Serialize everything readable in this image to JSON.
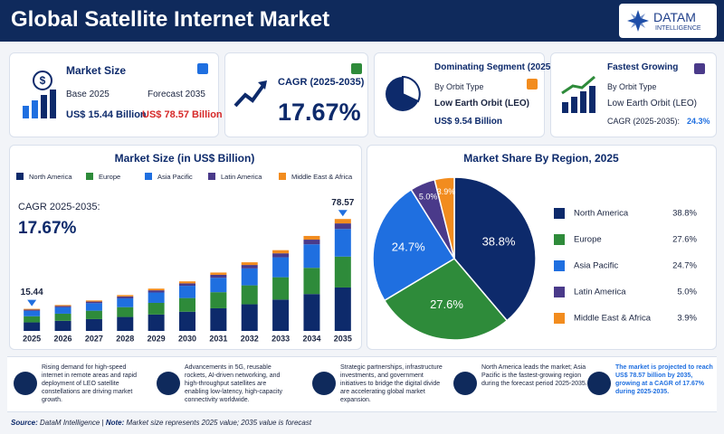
{
  "header": {
    "title": "Global Satellite Internet Market",
    "logo_name": "DATAM",
    "logo_sub": "INTELLIGENCE"
  },
  "kpis": {
    "market_size": {
      "title": "Market Size",
      "base_label": "Base 2025",
      "forecast_label": "Forecast 2035",
      "base_value": "US$ 15.44 Billion",
      "forecast_value": "US$ 78.57 Billion"
    },
    "cagr": {
      "title": "CAGR (2025-2035)",
      "value": "17.67%"
    },
    "dominating": {
      "title": "Dominating Segment (2025)",
      "by": "By Orbit Type",
      "segment": "Low Earth Orbit (LEO)",
      "value": "US$ 9.54 Billion"
    },
    "fastest": {
      "title": "Fastest Growing",
      "by": "By Orbit Type",
      "segment": "Low Earth Orbit (LEO)",
      "cagr_label": "CAGR (2025-2035):",
      "cagr_value": "24.3%"
    }
  },
  "chart_data": [
    {
      "type": "stacked_bar",
      "title": "Market Size (in US$ Billion)",
      "cagr_label": "CAGR 2025-2035:",
      "cagr_value": "17.67%",
      "start_label": "15.44",
      "end_label": "78.57",
      "categories": [
        "2025",
        "2026",
        "2027",
        "2028",
        "2029",
        "2030",
        "2031",
        "2032",
        "2033",
        "2034",
        "2035"
      ],
      "ylim": [
        0,
        80
      ],
      "series": [
        {
          "name": "North America",
          "color": "#0d2a6b",
          "values": [
            6.0,
            7.1,
            8.3,
            9.8,
            11.5,
            13.5,
            15.9,
            18.7,
            22.0,
            25.9,
            30.5
          ]
        },
        {
          "name": "Europe",
          "color": "#2e8b3a",
          "values": [
            4.3,
            5.0,
            5.9,
            6.9,
            8.2,
            9.6,
            11.3,
            13.3,
            15.7,
            18.4,
            21.7
          ]
        },
        {
          "name": "Asia Pacific",
          "color": "#1f6fe0",
          "values": [
            3.8,
            4.5,
            5.3,
            6.2,
            7.3,
            8.6,
            10.1,
            11.9,
            14.0,
            16.5,
            19.4
          ]
        },
        {
          "name": "Latin America",
          "color": "#4a3a8a",
          "values": [
            0.8,
            0.9,
            1.1,
            1.3,
            1.5,
            1.7,
            2.1,
            2.4,
            2.8,
            3.3,
            3.9
          ]
        },
        {
          "name": "Middle East & Africa",
          "color": "#f28c1e",
          "values": [
            0.6,
            0.7,
            0.8,
            1.0,
            1.2,
            1.4,
            1.6,
            1.9,
            2.2,
            2.6,
            3.1
          ]
        }
      ]
    },
    {
      "type": "pie",
      "title": "Market Share By Region, 2025",
      "categories": [
        "North America",
        "Europe",
        "Asia Pacific",
        "Latin America",
        "Middle East & Africa"
      ],
      "values": [
        38.8,
        27.6,
        24.7,
        5.0,
        3.9
      ],
      "value_labels": [
        "38.8%",
        "27.6%",
        "24.7%",
        "5.0%",
        "3.9%"
      ],
      "colors": [
        "#0d2a6b",
        "#2e8b3a",
        "#1f6fe0",
        "#4a3a8a",
        "#f28c1e"
      ]
    }
  ],
  "drivers": [
    "Rising demand for high-speed internet in remote areas and rapid deployment of LEO satellite constellations are driving market growth.",
    "Advancements in 5G, reusable rockets, AI-driven networking, and high-throughput satellites are enabling low-latency, high-capacity connectivity worldwide.",
    "Strategic partnerships, infrastructure investments, and government initiatives to bridge the digital divide are accelerating global market expansion.",
    "North America leads the market; Asia Pacific is the fastest-growing region during the forecast period 2025-2035.",
    "The market is projected to reach US$ 78.57 billion by 2035, growing at a CAGR of 17.67% during 2025-2035."
  ],
  "footer": {
    "source_label": "Source:",
    "source": "DataM Intelligence",
    "separator": "|",
    "note_label": "Note:",
    "note": "Market size represents 2025 value; 2035 value is forecast"
  }
}
